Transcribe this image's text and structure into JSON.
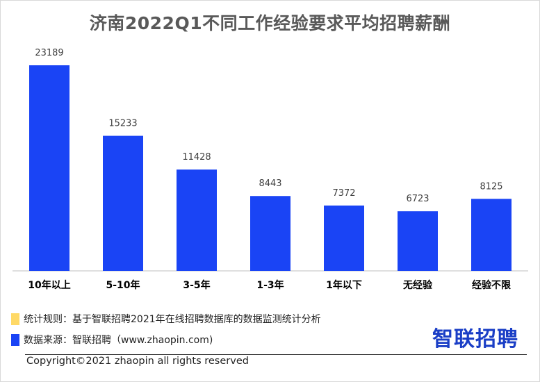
{
  "chart_data": {
    "type": "bar",
    "title": "济南2022Q1不同工作经验要求平均招聘薪酬",
    "categories": [
      "10年以上",
      "5-10年",
      "3-5年",
      "1-3年",
      "1年以下",
      "无经验",
      "经验不限"
    ],
    "values": [
      23189,
      15233,
      11428,
      8443,
      7372,
      6723,
      8125
    ],
    "data_labels": [
      "23189",
      "15233",
      "11428",
      "8443",
      "7372",
      "6723",
      "8125"
    ],
    "ylim": [
      0,
      24000
    ],
    "bar_color": "#1a44f5",
    "grid": false
  },
  "footer": {
    "rule_text": "统计规则：基于智联招聘2021年在线招聘数据库的数据监测统计分析",
    "source_text": "数据来源：智联招聘（www.zhaopin.com)",
    "logo_text": "智联招聘",
    "copyright": "Copyright©2021 zhaopin all rights reserved"
  }
}
